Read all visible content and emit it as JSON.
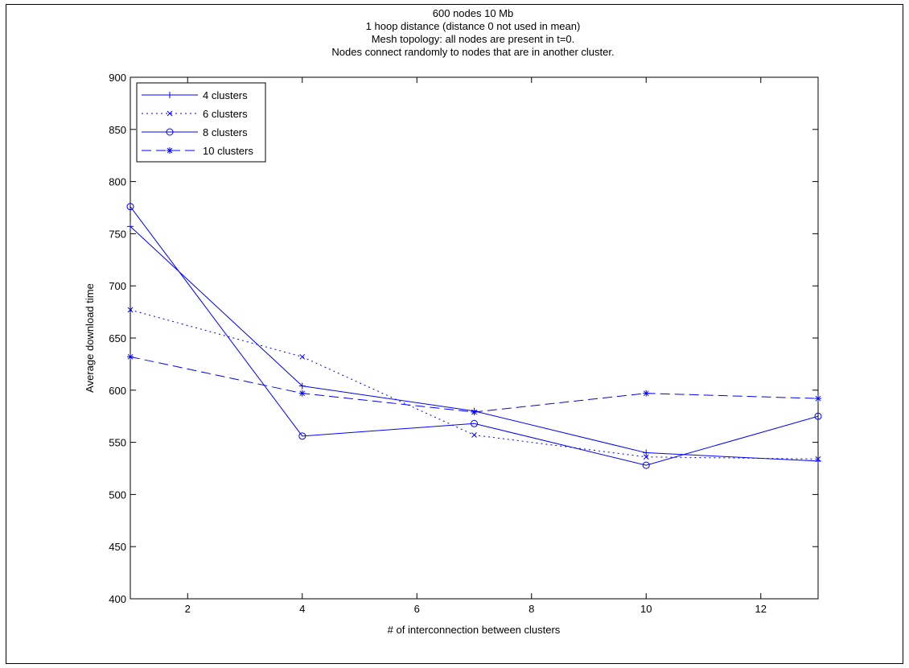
{
  "chart_data": {
    "type": "line",
    "title": [
      "600 nodes  10 Mb",
      "1 hoop distance (distance 0 not used in mean)",
      "Mesh topology: all nodes are present in t=0.",
      "Nodes connect randomly to nodes that are in another cluster."
    ],
    "xlabel": "# of interconnection between clusters",
    "ylabel": "Average download time",
    "xlim": [
      1,
      13
    ],
    "ylim": [
      400,
      900
    ],
    "xticks": [
      2,
      4,
      6,
      8,
      10,
      12
    ],
    "yticks": [
      400,
      450,
      500,
      550,
      600,
      650,
      700,
      750,
      800,
      850,
      900
    ],
    "grid": false,
    "legend_position": "top-left",
    "line_color": "#0000ff",
    "x": [
      1,
      4,
      7,
      10,
      13
    ],
    "series": [
      {
        "name": "4 clusters",
        "marker": "plus",
        "linestyle": "solid",
        "values": [
          757,
          604,
          580,
          540,
          532
        ]
      },
      {
        "name": "6 clusters",
        "marker": "x",
        "linestyle": "dotted",
        "values": [
          677,
          632,
          557,
          536,
          534
        ]
      },
      {
        "name": "8 clusters",
        "marker": "circle",
        "linestyle": "solid",
        "values": [
          776,
          556,
          568,
          528,
          575
        ]
      },
      {
        "name": "10 clusters",
        "marker": "asterisk",
        "linestyle": "dashed",
        "values": [
          632,
          597,
          579,
          597,
          592
        ]
      }
    ]
  }
}
